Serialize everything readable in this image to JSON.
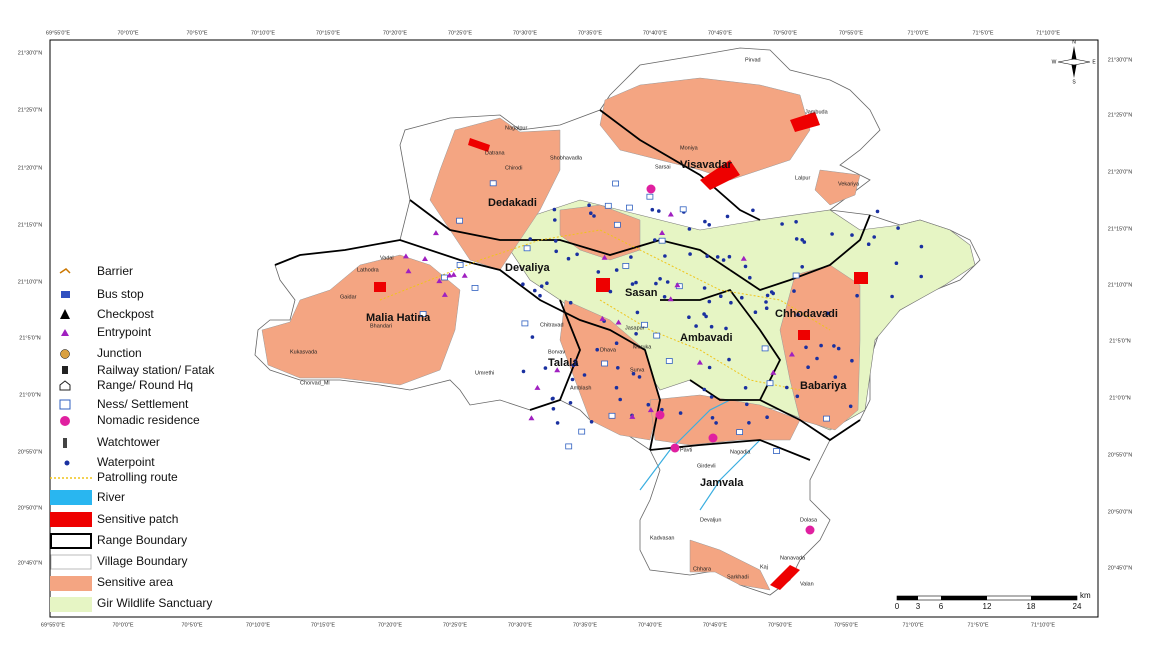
{
  "map": {
    "longitude_labels": [
      "69°55'0\"E",
      "70°0'0\"E",
      "70°5'0\"E",
      "70°10'0\"E",
      "70°15'0\"E",
      "70°20'0\"E",
      "70°25'0\"E",
      "70°30'0\"E",
      "70°35'0\"E",
      "70°40'0\"E",
      "70°45'0\"E",
      "70°50'0\"E",
      "70°55'0\"E",
      "71°0'0\"E",
      "71°5'0\"E",
      "71°10'0\"E"
    ],
    "latitude_labels": [
      "21°30'0\"N",
      "21°25'0\"N",
      "21°20'0\"N",
      "21°15'0\"N",
      "21°10'0\"N",
      "21°5'0\"N",
      "21°0'0\"N",
      "20°55'0\"N",
      "20°50'0\"N",
      "20°45'0\"N"
    ],
    "legend": [
      "Barrier",
      "Bus stop",
      "Checkpost",
      "Entrypoint",
      "Junction",
      "Railway station/ Fatak",
      "Range/ Round Hq",
      "Ness/ Settlement",
      "Nomadic residence",
      "Watchtower",
      "Waterpoint",
      "Patrolling route",
      "River",
      "Sensitive patch",
      "Range Boundary",
      "Village Boundary",
      "Sensitive area",
      "Gir Wildlife Sanctuary"
    ],
    "ranges": [
      "Visavadar",
      "Dedakadi",
      "Devaliya",
      "Sasan",
      "Malia Hatina",
      "Chhodavadi",
      "Ambavadi",
      "Talala",
      "Babariya",
      "Jamvala"
    ],
    "villages": [
      "Datrana",
      "Nagalpur",
      "Chirodi",
      "Vadal",
      "Lathodra",
      "Gaidar",
      "Bhandari",
      "Kukasvada",
      "Chorvad_Ml",
      "Chitravad",
      "Borvav",
      "Dhava",
      "Surva",
      "Moruka",
      "Jasapur",
      "Moniya",
      "Jambuda",
      "Shobhavadla",
      "Sarsai",
      "Lalpur",
      "Vekariya",
      "Pirvad",
      "Pavti",
      "Nagadia",
      "Girdevli",
      "Devaljun",
      "Kadvasan",
      "Dolasa",
      "Nanavada",
      "Umrethi",
      "Amblash",
      "Kaj",
      "Sarkhadi",
      "Chhara",
      "Valan"
    ],
    "scale": {
      "labels": [
        "0",
        "3",
        "6",
        "12",
        "18",
        "24"
      ],
      "unit": "km"
    },
    "compass": {
      "north": "N",
      "south": "S",
      "east": "E",
      "west": "W"
    }
  }
}
